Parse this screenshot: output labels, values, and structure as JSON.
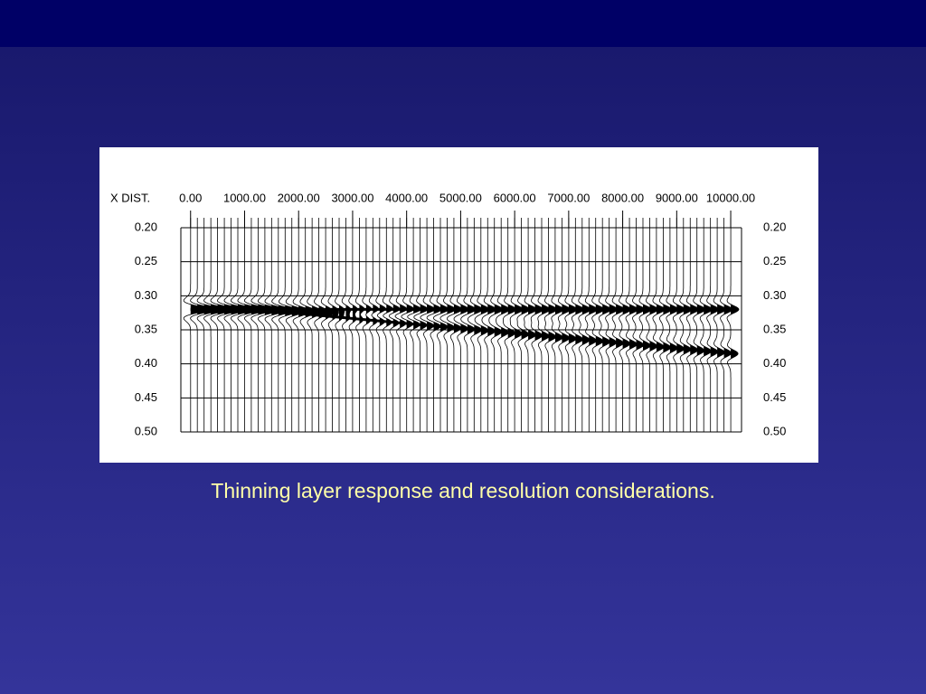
{
  "chart_data": {
    "type": "seismic",
    "x_label": "X DIST.",
    "xlim": [
      -180,
      10200
    ],
    "ylim": [
      0.2,
      0.5
    ],
    "xticks": [
      {
        "value": 0,
        "label": "0.00"
      },
      {
        "value": 1000,
        "label": "1000.00"
      },
      {
        "value": 2000,
        "label": "2000.00"
      },
      {
        "value": 3000,
        "label": "3000.00"
      },
      {
        "value": 4000,
        "label": "4000.00"
      },
      {
        "value": 5000,
        "label": "5000.00"
      },
      {
        "value": 6000,
        "label": "6000.00"
      },
      {
        "value": 7000,
        "label": "7000.00"
      },
      {
        "value": 8000,
        "label": "8000.00"
      },
      {
        "value": 9000,
        "label": "9000.00"
      },
      {
        "value": 10000,
        "label": "10000.00"
      }
    ],
    "yticks": [
      {
        "value": 0.2,
        "label": "0.20"
      },
      {
        "value": 0.25,
        "label": "0.25"
      },
      {
        "value": 0.3,
        "label": "0.30"
      },
      {
        "value": 0.35,
        "label": "0.35"
      },
      {
        "value": 0.4,
        "label": "0.40"
      },
      {
        "value": 0.45,
        "label": "0.45"
      },
      {
        "value": 0.5,
        "label": "0.50"
      }
    ],
    "x": [
      0,
      1200,
      10000
    ],
    "top": [
      0.32,
      0.32,
      0.32
    ],
    "base": [
      0.32,
      0.32,
      0.385
    ],
    "grid": true,
    "color": "#000000"
  },
  "caption": "Thinning layer response and resolution considerations."
}
